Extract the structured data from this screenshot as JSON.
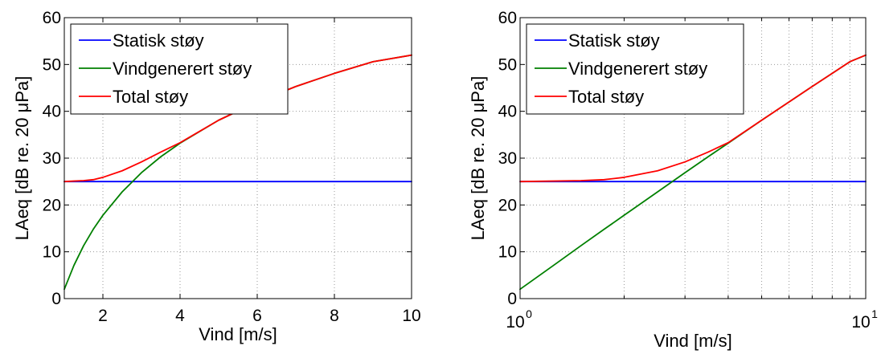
{
  "chart_data": [
    {
      "type": "line",
      "xscale": "linear",
      "xlim": [
        1,
        10
      ],
      "ylim": [
        0,
        60
      ],
      "xticks": [
        2,
        4,
        6,
        8,
        10
      ],
      "xtick_labels": [
        "2",
        "4",
        "6",
        "8",
        "10"
      ],
      "yticks": [
        0,
        10,
        20,
        30,
        40,
        50,
        60
      ],
      "ytick_labels": [
        "0",
        "10",
        "20",
        "30",
        "40",
        "50",
        "60"
      ],
      "xlabel": "Vind [m/s]",
      "ylabel": "LAeq [dB re. 20 μPa]",
      "grid": "dotted",
      "legend_position": "top-left",
      "x": [
        1,
        1.25,
        1.5,
        1.75,
        2,
        2.5,
        3,
        3.5,
        4,
        5,
        6,
        7,
        8,
        9,
        10
      ],
      "series": [
        {
          "name": "Statisk støy",
          "color": "#0000ff",
          "values": [
            25,
            25,
            25,
            25,
            25,
            25,
            25,
            25,
            25,
            25,
            25,
            25,
            25,
            25,
            25
          ]
        },
        {
          "name": "Vindgenerert støy",
          "color": "#008000",
          "values": [
            2,
            7.1,
            11.3,
            14.8,
            17.8,
            22.8,
            26.9,
            30.3,
            33.2,
            38.1,
            42.0,
            45.3,
            48.1,
            50.6,
            52.0
          ]
        },
        {
          "name": "Total støy",
          "color": "#ff0000",
          "values": [
            25.0,
            25.1,
            25.2,
            25.4,
            25.9,
            27.3,
            29.2,
            31.3,
            33.3,
            38.1,
            42.0,
            45.3,
            48.1,
            50.6,
            52.0
          ]
        }
      ]
    },
    {
      "type": "line",
      "xscale": "log",
      "xlim": [
        1,
        10
      ],
      "ylim": [
        0,
        60
      ],
      "xtick_labels": [
        {
          "base": "10",
          "exp": "0",
          "x": 1
        },
        {
          "base": "10",
          "exp": "1",
          "x": 10
        }
      ],
      "yticks": [
        0,
        10,
        20,
        30,
        40,
        50,
        60
      ],
      "ytick_labels": [
        "0",
        "10",
        "20",
        "30",
        "40",
        "50",
        "60"
      ],
      "xlabel": "Vind [m/s]",
      "ylabel": "LAeq [dB re. 20 μPa]",
      "grid": "dotted",
      "legend_position": "top-left",
      "x": [
        1,
        1.25,
        1.5,
        1.75,
        2,
        2.5,
        3,
        3.5,
        4,
        5,
        6,
        7,
        8,
        9,
        10
      ],
      "series": [
        {
          "name": "Statisk støy",
          "color": "#0000ff",
          "values": [
            25,
            25,
            25,
            25,
            25,
            25,
            25,
            25,
            25,
            25,
            25,
            25,
            25,
            25,
            25
          ]
        },
        {
          "name": "Vindgenerert støy",
          "color": "#008000",
          "values": [
            2,
            7.1,
            11.3,
            14.8,
            17.8,
            22.8,
            26.9,
            30.3,
            33.2,
            38.1,
            42.0,
            45.3,
            48.1,
            50.6,
            52.0
          ]
        },
        {
          "name": "Total støy",
          "color": "#ff0000",
          "values": [
            25.0,
            25.1,
            25.2,
            25.4,
            25.9,
            27.3,
            29.2,
            31.3,
            33.3,
            38.1,
            42.0,
            45.3,
            48.1,
            50.6,
            52.0
          ]
        }
      ]
    }
  ]
}
